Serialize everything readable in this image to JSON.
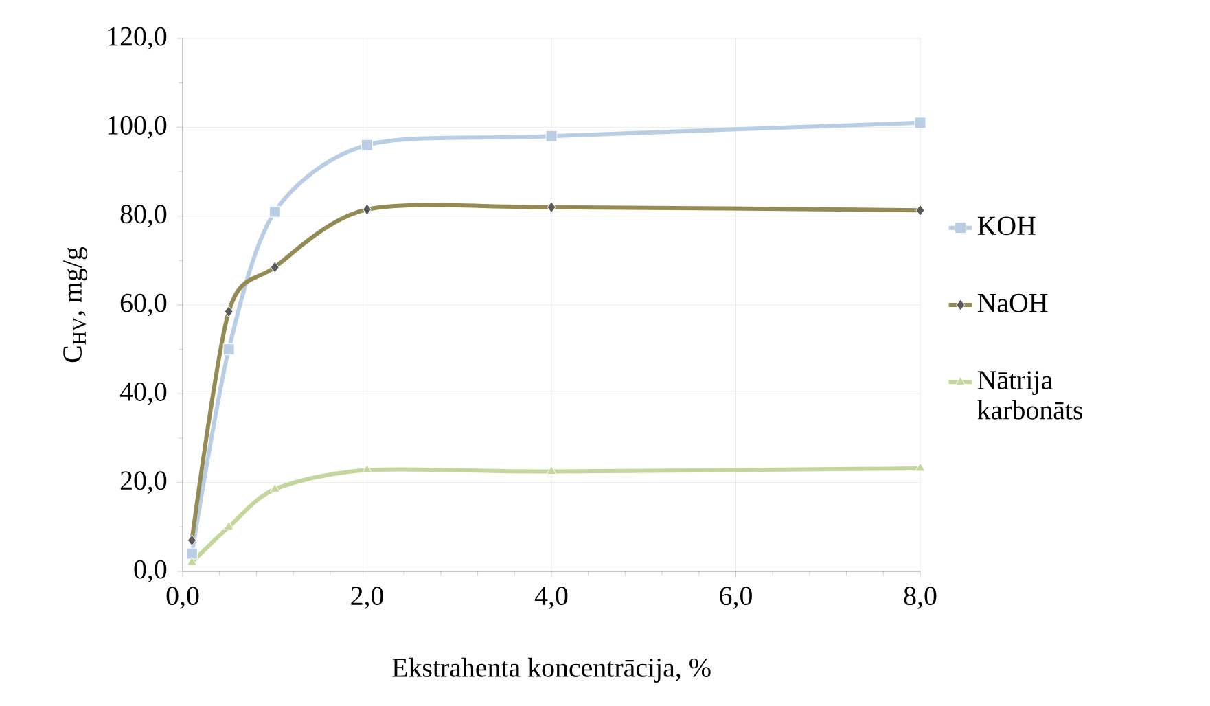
{
  "chart_data": {
    "type": "line",
    "xlabel": "Ekstrahenta koncentrācija, %",
    "ylabel": "C$_{HV}$, mg/g",
    "x": [
      0.1,
      0.5,
      1,
      2,
      4,
      8
    ],
    "series": [
      {
        "name": "KOH",
        "color": "#b9cde5",
        "marker": "square",
        "values": [
          4,
          50,
          81,
          96,
          98,
          101
        ]
      },
      {
        "name": "NaOH",
        "color": "#948a54",
        "marker": "diamond",
        "values": [
          7,
          58.5,
          68.5,
          81.5,
          82,
          81.3
        ]
      },
      {
        "name": "Nātrija karbonāts",
        "color": "#c3d69b",
        "marker": "triangle",
        "values": [
          2,
          10,
          18.5,
          22.8,
          22.5,
          23.2
        ]
      }
    ],
    "xlim": [
      0,
      8
    ],
    "ylim": [
      0,
      120
    ],
    "xticks": [
      {
        "value": 0,
        "label": "0,0"
      },
      {
        "value": 2,
        "label": "2,0"
      },
      {
        "value": 4,
        "label": "4,0"
      },
      {
        "value": 6,
        "label": "6,0"
      },
      {
        "value": 8,
        "label": "8,0"
      }
    ],
    "yticks": [
      {
        "value": 0,
        "label": "0,0"
      },
      {
        "value": 20,
        "label": "20,0"
      },
      {
        "value": 40,
        "label": "40,0"
      },
      {
        "value": 60,
        "label": "60,0"
      },
      {
        "value": 80,
        "label": "80,0"
      },
      {
        "value": 100,
        "label": "100,0"
      },
      {
        "value": 120,
        "label": "120,0"
      }
    ],
    "grid": true,
    "legend": "right",
    "line_style": "solid"
  }
}
